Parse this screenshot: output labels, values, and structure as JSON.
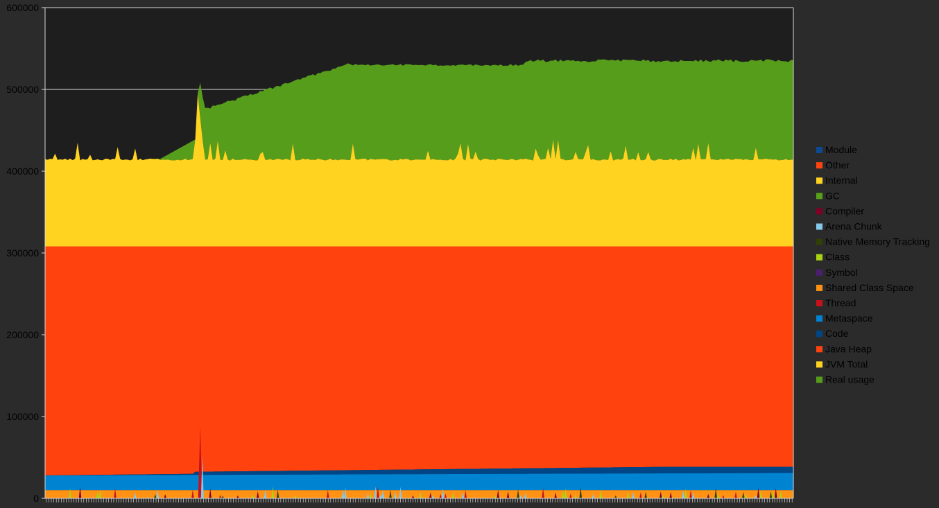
{
  "chart_data": {
    "type": "area",
    "title": "",
    "xlabel": "",
    "ylabel": "",
    "ylim": [
      0,
      600000
    ],
    "y_ticks": [
      "0",
      "100000",
      "200000",
      "300000",
      "400000",
      "500000",
      "600000"
    ],
    "grid": "horizontal gridlines",
    "legend_position": "right",
    "colors": {
      "background": "#2b2b2b",
      "plot_background": "#1e1e1e",
      "gridline": "#d8d8d8",
      "tick_text": "#000000"
    },
    "x_samples": 300,
    "series": [
      {
        "name": "Module",
        "color": "#0d4a94",
        "approx_level": 0
      },
      {
        "name": "Other",
        "color": "#ff4410",
        "approx_level": 0
      },
      {
        "name": "Internal",
        "color": "#ffd21f",
        "approx_level": 0
      },
      {
        "name": "GC",
        "color": "#57a01b",
        "approx_level": 0
      },
      {
        "name": "Compiler",
        "color": "#800025",
        "approx_level": 0
      },
      {
        "name": "Arena Chunk",
        "color": "#84c9ec",
        "approx_level": 0
      },
      {
        "name": "Native Memory Tracking",
        "color": "#314005",
        "approx_level": 0
      },
      {
        "name": "Class",
        "color": "#aad411",
        "approx_level": 0
      },
      {
        "name": "Symbol",
        "color": "#4b1f6f",
        "approx_level": 0
      },
      {
        "name": "Shared Class Space",
        "color": "#ff9212",
        "approx_level": 9000
      },
      {
        "name": "Thread",
        "color": "#c6101b",
        "approx_level": 0
      },
      {
        "name": "Metaspace",
        "color": "#0084d1",
        "approx_level": 30000
      },
      {
        "name": "Code",
        "color": "#004586",
        "approx_level": 35000
      },
      {
        "name": "Java Heap",
        "color": "#ff420e",
        "approx_level": 308000
      },
      {
        "name": "JVM Total",
        "color": "#ffd320",
        "approx_level": 415000
      },
      {
        "name": "Real usage",
        "color": "#579d1c",
        "approx_level": 535000
      }
    ],
    "bands": {
      "shared_class_space": {
        "min": 9000,
        "max": 11000
      },
      "metaspace_top": {
        "start": 28000,
        "end": 31000
      },
      "code_top": {
        "start": 28000,
        "end": 36000
      },
      "java_heap_top": 308000,
      "jvm_total_base": 413000,
      "real_usage_start": 410000,
      "real_usage_plateau": 532000
    }
  }
}
